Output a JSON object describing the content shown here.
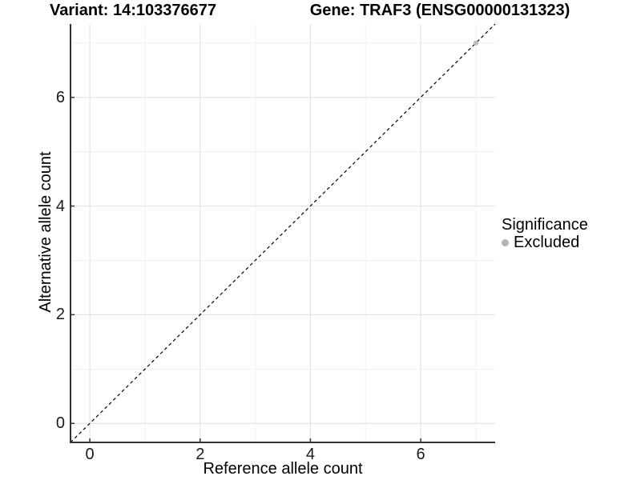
{
  "chart_data": {
    "type": "scatter",
    "titles": {
      "left": "Variant: 14:103376677",
      "right": "Gene: TRAF3 (ENSG00000131323)"
    },
    "xlabel": "Reference allele count",
    "ylabel": "Alternative allele count",
    "xlim": [
      -0.35,
      7.35
    ],
    "ylim": [
      -0.35,
      7.35
    ],
    "x_major_ticks": [
      0,
      2,
      4,
      6
    ],
    "y_major_ticks": [
      0,
      2,
      4,
      6
    ],
    "x_minor_ticks": [
      1,
      3,
      5,
      7
    ],
    "y_minor_ticks": [
      1,
      3,
      5,
      7
    ],
    "grid": "on",
    "identity_line": {
      "slope": 1,
      "intercept": 0,
      "style": "dashed",
      "color": "#000000"
    },
    "series": [
      {
        "name": "Excluded",
        "color": "#bcbcbc",
        "points": [
          {
            "x": 7,
            "y": 7
          }
        ]
      }
    ],
    "legend": {
      "title": "Significance",
      "position": "right",
      "items": [
        {
          "label": "Excluded",
          "color": "#b4b4b4"
        }
      ]
    },
    "colors": {
      "panel_background": "#ffffff",
      "major_grid": "#e3e3e3",
      "minor_grid": "#efefef",
      "axis_line": "#333333",
      "tick_mark": "#333333",
      "tick_text": "#1a1a1a"
    }
  }
}
